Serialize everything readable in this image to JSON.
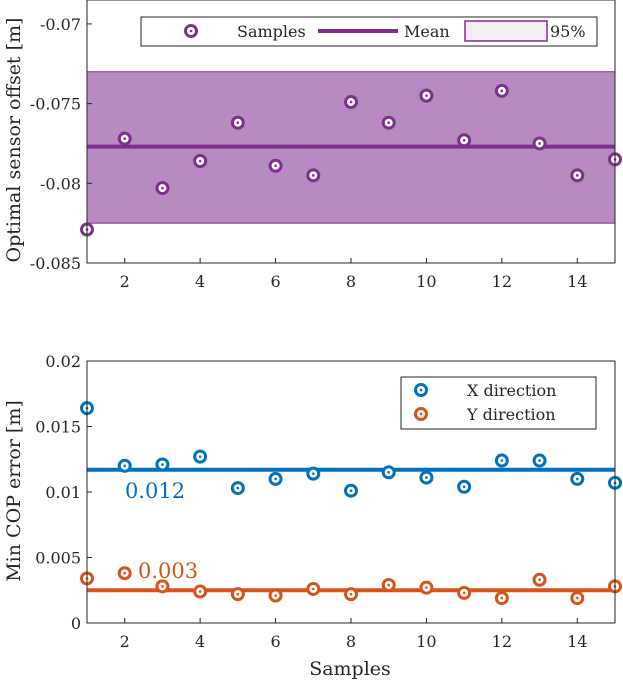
{
  "chart_data": [
    {
      "type": "scatter",
      "xlabel": "",
      "ylabel": "Optimal sensor offset [m]",
      "xlim": [
        1,
        15
      ],
      "ylim": [
        -0.085,
        -0.0685
      ],
      "xticks": [
        2,
        4,
        6,
        8,
        10,
        12,
        14
      ],
      "xtick_labels": [
        "2",
        "4",
        "6",
        "8",
        "10",
        "12",
        "14"
      ],
      "yticks": [
        -0.085,
        -0.08,
        -0.075,
        -0.07
      ],
      "ytick_labels": [
        "-0.085",
        "-0.08",
        "-0.075",
        "-0.07"
      ],
      "grid": false,
      "legend_position": "top-right",
      "legend": {
        "samples": "Samples",
        "mean": "Mean",
        "band": "95%"
      },
      "colors": {
        "series": "#7E2F8E",
        "band_fill": "#B88BC0"
      },
      "band": [
        -0.0825,
        -0.073
      ],
      "mean": -0.0777,
      "series": [
        {
          "name": "Samples",
          "x": [
            1,
            2,
            3,
            4,
            5,
            6,
            7,
            8,
            9,
            10,
            11,
            12,
            13,
            14,
            15
          ],
          "y": [
            -0.0829,
            -0.0772,
            -0.0803,
            -0.0786,
            -0.0762,
            -0.0789,
            -0.0795,
            -0.0749,
            -0.0762,
            -0.0745,
            -0.0773,
            -0.0742,
            -0.0775,
            -0.0795,
            -0.0785
          ]
        }
      ]
    },
    {
      "type": "scatter",
      "xlabel": "Samples",
      "ylabel": "Min COP error [m]",
      "xlim": [
        1,
        15
      ],
      "ylim": [
        0,
        0.02
      ],
      "xticks": [
        2,
        4,
        6,
        8,
        10,
        12,
        14
      ],
      "xtick_labels": [
        "2",
        "4",
        "6",
        "8",
        "10",
        "12",
        "14"
      ],
      "yticks": [
        0,
        0.005,
        0.01,
        0.015,
        0.02
      ],
      "ytick_labels": [
        "0",
        "0.005",
        "0.01",
        "0.015",
        "0.02"
      ],
      "grid": false,
      "legend_position": "top-right",
      "colors": {
        "x": "#0072BD",
        "y": "#D95319"
      },
      "series": [
        {
          "name": "X direction",
          "mean": 0.0117,
          "mean_label": "0.012",
          "x": [
            1,
            2,
            3,
            4,
            5,
            6,
            7,
            8,
            9,
            10,
            11,
            12,
            13,
            14,
            15
          ],
          "y": [
            0.0164,
            0.012,
            0.0121,
            0.0127,
            0.0103,
            0.011,
            0.0114,
            0.0101,
            0.0115,
            0.0111,
            0.0104,
            0.0124,
            0.0124,
            0.011,
            0.0107
          ]
        },
        {
          "name": "Y direction",
          "mean": 0.0025,
          "mean_label": "0.003",
          "x": [
            1,
            2,
            3,
            4,
            5,
            6,
            7,
            8,
            9,
            10,
            11,
            12,
            13,
            14,
            15
          ],
          "y": [
            0.0034,
            0.0038,
            0.0028,
            0.0024,
            0.0022,
            0.0021,
            0.0026,
            0.0022,
            0.0029,
            0.0027,
            0.0023,
            0.0019,
            0.0033,
            0.0019,
            0.0028
          ]
        }
      ]
    }
  ]
}
